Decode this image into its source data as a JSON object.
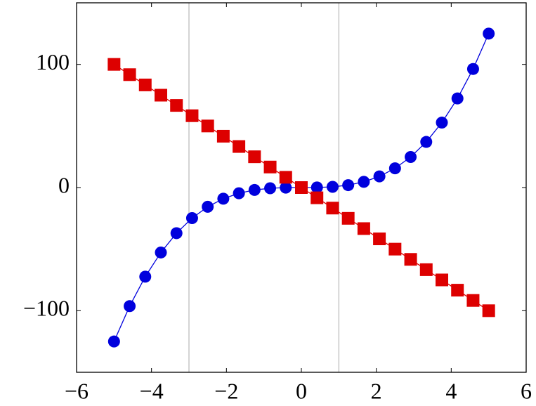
{
  "chart_data": {
    "type": "line",
    "x": [
      -5,
      -4.5833,
      -4.1667,
      -3.75,
      -3.3333,
      -2.9167,
      -2.5,
      -2.0833,
      -1.6667,
      -1.25,
      -0.8333,
      -0.4167,
      0,
      0.4167,
      0.8333,
      1.25,
      1.6667,
      2.0833,
      2.5,
      2.9167,
      3.3333,
      3.75,
      4.1667,
      4.5833,
      5
    ],
    "series": [
      {
        "color": "#0000dd",
        "marker": "circle",
        "values": [
          -125,
          -96.28,
          -72.34,
          -52.73,
          -37.04,
          -24.81,
          -15.63,
          -9.04,
          -4.63,
          -1.95,
          -0.58,
          -0.07,
          0,
          0.07,
          0.58,
          1.95,
          4.63,
          9.04,
          15.63,
          24.81,
          37.04,
          52.73,
          72.34,
          96.28,
          125
        ]
      },
      {
        "color": "#dd0000",
        "marker": "square",
        "values": [
          100,
          91.67,
          83.33,
          75,
          66.67,
          58.33,
          50,
          41.67,
          33.33,
          25,
          16.67,
          8.33,
          0,
          -8.33,
          -16.67,
          -25,
          -33.33,
          -41.67,
          -50,
          -58.33,
          -66.67,
          -75,
          -83.33,
          -91.67,
          -100
        ]
      }
    ],
    "vlines": [
      -3,
      1
    ],
    "xlim": [
      -6,
      6
    ],
    "ylim": [
      -150,
      150
    ],
    "xticks": [
      {
        "value": -6,
        "label": "−6"
      },
      {
        "value": -4,
        "label": "−4"
      },
      {
        "value": -2,
        "label": "−2"
      },
      0,
      2,
      4,
      6
    ],
    "yticks": [
      {
        "value": -100,
        "label": "−100"
      },
      0,
      100
    ]
  }
}
